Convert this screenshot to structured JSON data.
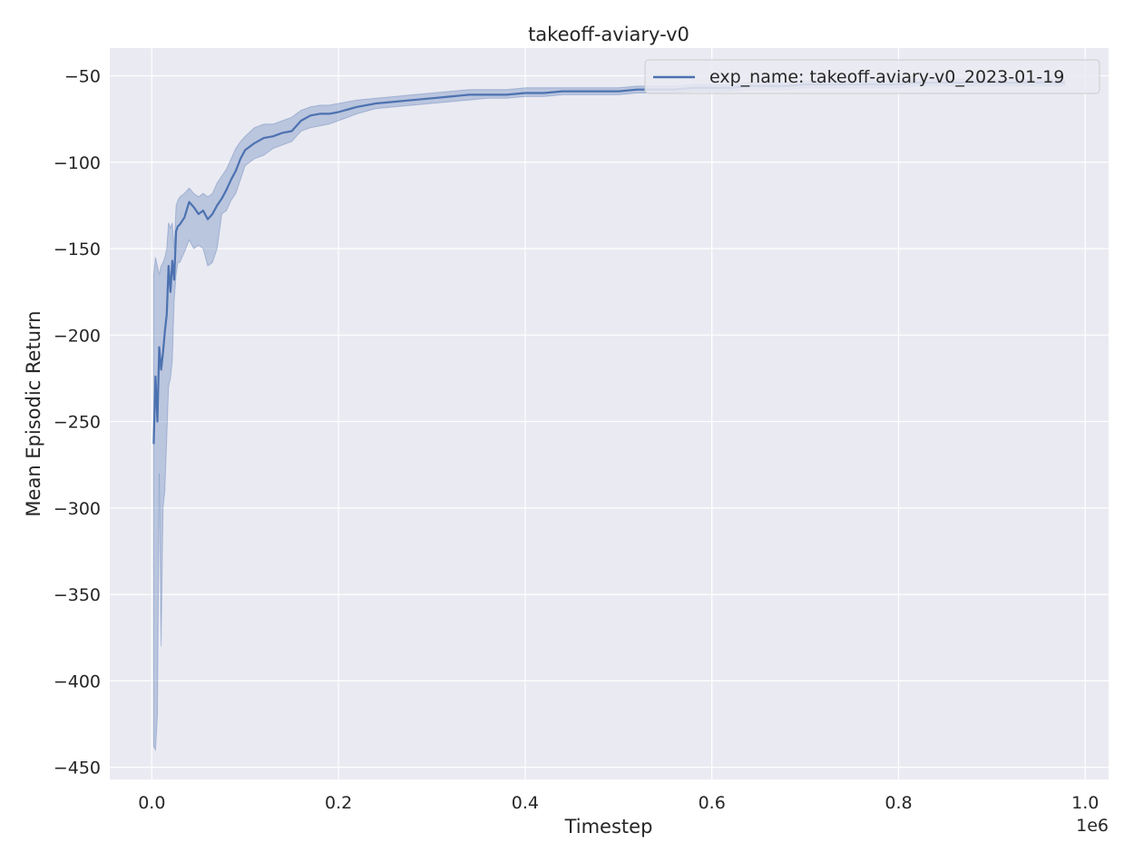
{
  "chart_data": {
    "type": "line",
    "title": "takeoff-aviary-v0",
    "xlabel": "Timestep",
    "ylabel": "Mean Episodic Return",
    "x_offset_text": "1e6",
    "xlim": [
      -45000,
      1025000
    ],
    "ylim": [
      -457,
      -34
    ],
    "x_ticks": [
      0.0,
      0.2,
      0.4,
      0.6,
      0.8,
      1.0
    ],
    "x_tick_labels": [
      "0.0",
      "0.2",
      "0.4",
      "0.6",
      "0.8",
      "1.0"
    ],
    "y_ticks": [
      -50,
      -100,
      -150,
      -200,
      -250,
      -300,
      -350,
      -400,
      -450
    ],
    "y_tick_labels": [
      "−50",
      "−100",
      "−150",
      "−200",
      "−250",
      "−300",
      "−350",
      "−400",
      "−450"
    ],
    "grid": true,
    "legend_position": "top-right",
    "series": [
      {
        "name": "exp_name: takeoff-aviary-v0_2023-01-19",
        "color": "#4c72b0",
        "band_color": "#4c72b0",
        "x": [
          2000,
          4000,
          6000,
          8000,
          10000,
          12000,
          14000,
          16000,
          18000,
          20000,
          22000,
          24000,
          26000,
          28000,
          30000,
          35000,
          40000,
          45000,
          50000,
          55000,
          60000,
          65000,
          70000,
          75000,
          80000,
          85000,
          90000,
          95000,
          100000,
          110000,
          120000,
          130000,
          140000,
          150000,
          160000,
          170000,
          180000,
          190000,
          200000,
          220000,
          240000,
          260000,
          280000,
          300000,
          320000,
          340000,
          360000,
          380000,
          400000,
          420000,
          440000,
          460000,
          480000,
          500000,
          520000,
          540000,
          560000,
          580000,
          600000,
          620000,
          640000,
          660000,
          680000,
          700000,
          720000,
          740000,
          760000,
          780000,
          800000,
          820000,
          840000,
          860000,
          880000,
          900000,
          920000,
          940000,
          960000,
          978000
        ],
        "y": [
          -263,
          -224,
          -250,
          -207,
          -220,
          -210,
          -198,
          -188,
          -160,
          -175,
          -157,
          -168,
          -140,
          -137,
          -136,
          -132,
          -123,
          -126,
          -130,
          -128,
          -133,
          -130,
          -125,
          -121,
          -116,
          -110,
          -105,
          -98,
          -93,
          -89,
          -86,
          -85,
          -83,
          -82,
          -76,
          -73,
          -72,
          -72,
          -71,
          -68,
          -66,
          -65,
          -64,
          -63,
          -62,
          -61,
          -61,
          -61,
          -60,
          -60,
          -59,
          -59,
          -59,
          -59,
          -58,
          -58,
          -58,
          -57,
          -57,
          -57,
          -56,
          -56,
          -56,
          -55,
          -55,
          -55,
          -55,
          -55,
          -55,
          -54,
          -54,
          -54,
          -54,
          -54,
          -54,
          -54,
          -54,
          -54
        ],
        "y_lower": [
          -438,
          -440,
          -420,
          -280,
          -380,
          -300,
          -290,
          -260,
          -230,
          -225,
          -215,
          -180,
          -165,
          -158,
          -158,
          -152,
          -145,
          -150,
          -148,
          -150,
          -160,
          -158,
          -150,
          -130,
          -128,
          -122,
          -118,
          -110,
          -102,
          -98,
          -96,
          -92,
          -90,
          -88,
          -82,
          -80,
          -79,
          -78,
          -76,
          -72,
          -69,
          -68,
          -67,
          -66,
          -65,
          -64,
          -63,
          -63,
          -62,
          -62,
          -61,
          -61,
          -61,
          -61,
          -60,
          -60,
          -60,
          -59,
          -59,
          -59,
          -58,
          -58,
          -58,
          -57,
          -57,
          -57,
          -57,
          -57,
          -57,
          -56,
          -56,
          -56,
          -56,
          -56,
          -56,
          -56,
          -56,
          -56
        ],
        "y_upper": [
          -165,
          -155,
          -160,
          -165,
          -160,
          -158,
          -155,
          -150,
          -135,
          -138,
          -135,
          -150,
          -125,
          -122,
          -120,
          -118,
          -115,
          -118,
          -120,
          -118,
          -120,
          -118,
          -112,
          -108,
          -104,
          -98,
          -92,
          -88,
          -85,
          -80,
          -78,
          -78,
          -76,
          -74,
          -70,
          -68,
          -67,
          -67,
          -66,
          -64,
          -63,
          -62,
          -61,
          -60,
          -59,
          -58,
          -58,
          -58,
          -57,
          -57,
          -57,
          -57,
          -57,
          -57,
          -56,
          -56,
          -56,
          -55,
          -55,
          -55,
          -54,
          -54,
          -54,
          -53,
          -53,
          -53,
          -53,
          -53,
          -53,
          -52,
          -52,
          -52,
          -52,
          -52,
          -52,
          -52,
          -52,
          -52
        ]
      }
    ]
  }
}
